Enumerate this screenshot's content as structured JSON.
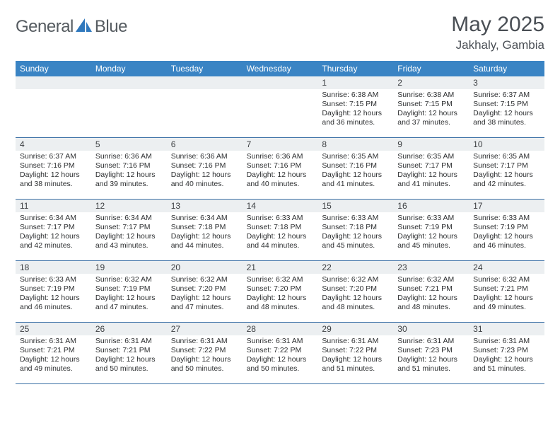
{
  "brand": {
    "name_a": "General",
    "name_b": "Blue"
  },
  "title": "May 2025",
  "location": "Jakhaly, Gambia",
  "colors": {
    "header_bg": "#3a84c4",
    "header_text": "#ffffff",
    "daynum_bg": "#eceff1",
    "week_border": "#3a6fa5",
    "text": "#2d2f31",
    "title_text": "#4a4f55",
    "logo_text": "#555b60",
    "logo_icon": "#2f78bd"
  },
  "fonts": {
    "base_family": "Arial",
    "title_size": 30,
    "location_size": 17,
    "dayname_size": 12,
    "daynum_size": 12,
    "info_size": 10.5
  },
  "daynames": [
    "Sunday",
    "Monday",
    "Tuesday",
    "Wednesday",
    "Thursday",
    "Friday",
    "Saturday"
  ],
  "weeks": [
    [
      {
        "n": "",
        "sr": "",
        "ss": "",
        "dl": ""
      },
      {
        "n": "",
        "sr": "",
        "ss": "",
        "dl": ""
      },
      {
        "n": "",
        "sr": "",
        "ss": "",
        "dl": ""
      },
      {
        "n": "",
        "sr": "",
        "ss": "",
        "dl": ""
      },
      {
        "n": "1",
        "sr": "Sunrise: 6:38 AM",
        "ss": "Sunset: 7:15 PM",
        "dl": "Daylight: 12 hours and 36 minutes."
      },
      {
        "n": "2",
        "sr": "Sunrise: 6:38 AM",
        "ss": "Sunset: 7:15 PM",
        "dl": "Daylight: 12 hours and 37 minutes."
      },
      {
        "n": "3",
        "sr": "Sunrise: 6:37 AM",
        "ss": "Sunset: 7:15 PM",
        "dl": "Daylight: 12 hours and 38 minutes."
      }
    ],
    [
      {
        "n": "4",
        "sr": "Sunrise: 6:37 AM",
        "ss": "Sunset: 7:16 PM",
        "dl": "Daylight: 12 hours and 38 minutes."
      },
      {
        "n": "5",
        "sr": "Sunrise: 6:36 AM",
        "ss": "Sunset: 7:16 PM",
        "dl": "Daylight: 12 hours and 39 minutes."
      },
      {
        "n": "6",
        "sr": "Sunrise: 6:36 AM",
        "ss": "Sunset: 7:16 PM",
        "dl": "Daylight: 12 hours and 40 minutes."
      },
      {
        "n": "7",
        "sr": "Sunrise: 6:36 AM",
        "ss": "Sunset: 7:16 PM",
        "dl": "Daylight: 12 hours and 40 minutes."
      },
      {
        "n": "8",
        "sr": "Sunrise: 6:35 AM",
        "ss": "Sunset: 7:16 PM",
        "dl": "Daylight: 12 hours and 41 minutes."
      },
      {
        "n": "9",
        "sr": "Sunrise: 6:35 AM",
        "ss": "Sunset: 7:17 PM",
        "dl": "Daylight: 12 hours and 41 minutes."
      },
      {
        "n": "10",
        "sr": "Sunrise: 6:35 AM",
        "ss": "Sunset: 7:17 PM",
        "dl": "Daylight: 12 hours and 42 minutes."
      }
    ],
    [
      {
        "n": "11",
        "sr": "Sunrise: 6:34 AM",
        "ss": "Sunset: 7:17 PM",
        "dl": "Daylight: 12 hours and 42 minutes."
      },
      {
        "n": "12",
        "sr": "Sunrise: 6:34 AM",
        "ss": "Sunset: 7:17 PM",
        "dl": "Daylight: 12 hours and 43 minutes."
      },
      {
        "n": "13",
        "sr": "Sunrise: 6:34 AM",
        "ss": "Sunset: 7:18 PM",
        "dl": "Daylight: 12 hours and 44 minutes."
      },
      {
        "n": "14",
        "sr": "Sunrise: 6:33 AM",
        "ss": "Sunset: 7:18 PM",
        "dl": "Daylight: 12 hours and 44 minutes."
      },
      {
        "n": "15",
        "sr": "Sunrise: 6:33 AM",
        "ss": "Sunset: 7:18 PM",
        "dl": "Daylight: 12 hours and 45 minutes."
      },
      {
        "n": "16",
        "sr": "Sunrise: 6:33 AM",
        "ss": "Sunset: 7:19 PM",
        "dl": "Daylight: 12 hours and 45 minutes."
      },
      {
        "n": "17",
        "sr": "Sunrise: 6:33 AM",
        "ss": "Sunset: 7:19 PM",
        "dl": "Daylight: 12 hours and 46 minutes."
      }
    ],
    [
      {
        "n": "18",
        "sr": "Sunrise: 6:33 AM",
        "ss": "Sunset: 7:19 PM",
        "dl": "Daylight: 12 hours and 46 minutes."
      },
      {
        "n": "19",
        "sr": "Sunrise: 6:32 AM",
        "ss": "Sunset: 7:19 PM",
        "dl": "Daylight: 12 hours and 47 minutes."
      },
      {
        "n": "20",
        "sr": "Sunrise: 6:32 AM",
        "ss": "Sunset: 7:20 PM",
        "dl": "Daylight: 12 hours and 47 minutes."
      },
      {
        "n": "21",
        "sr": "Sunrise: 6:32 AM",
        "ss": "Sunset: 7:20 PM",
        "dl": "Daylight: 12 hours and 48 minutes."
      },
      {
        "n": "22",
        "sr": "Sunrise: 6:32 AM",
        "ss": "Sunset: 7:20 PM",
        "dl": "Daylight: 12 hours and 48 minutes."
      },
      {
        "n": "23",
        "sr": "Sunrise: 6:32 AM",
        "ss": "Sunset: 7:21 PM",
        "dl": "Daylight: 12 hours and 48 minutes."
      },
      {
        "n": "24",
        "sr": "Sunrise: 6:32 AM",
        "ss": "Sunset: 7:21 PM",
        "dl": "Daylight: 12 hours and 49 minutes."
      }
    ],
    [
      {
        "n": "25",
        "sr": "Sunrise: 6:31 AM",
        "ss": "Sunset: 7:21 PM",
        "dl": "Daylight: 12 hours and 49 minutes."
      },
      {
        "n": "26",
        "sr": "Sunrise: 6:31 AM",
        "ss": "Sunset: 7:21 PM",
        "dl": "Daylight: 12 hours and 50 minutes."
      },
      {
        "n": "27",
        "sr": "Sunrise: 6:31 AM",
        "ss": "Sunset: 7:22 PM",
        "dl": "Daylight: 12 hours and 50 minutes."
      },
      {
        "n": "28",
        "sr": "Sunrise: 6:31 AM",
        "ss": "Sunset: 7:22 PM",
        "dl": "Daylight: 12 hours and 50 minutes."
      },
      {
        "n": "29",
        "sr": "Sunrise: 6:31 AM",
        "ss": "Sunset: 7:22 PM",
        "dl": "Daylight: 12 hours and 51 minutes."
      },
      {
        "n": "30",
        "sr": "Sunrise: 6:31 AM",
        "ss": "Sunset: 7:23 PM",
        "dl": "Daylight: 12 hours and 51 minutes."
      },
      {
        "n": "31",
        "sr": "Sunrise: 6:31 AM",
        "ss": "Sunset: 7:23 PM",
        "dl": "Daylight: 12 hours and 51 minutes."
      }
    ]
  ]
}
